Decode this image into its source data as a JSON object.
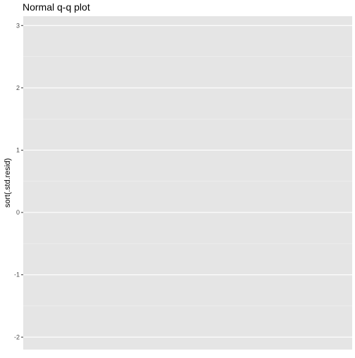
{
  "chart_data": {
    "type": "scatter",
    "title": "Normal q-q plot",
    "xlabel": "",
    "ylabel": "sort(.std.resid)",
    "ylim": [
      -2.2,
      3.15
    ],
    "y_ticks": [
      3,
      2,
      1,
      0,
      -1,
      -2
    ],
    "y_tick_labels": [
      "3",
      "2",
      "1",
      "0",
      "-1",
      "-2"
    ],
    "series": [],
    "grid": true,
    "legend": "none",
    "colors": {
      "panel_background": "#e5e5e5",
      "grid_major": "#ffffff",
      "grid_minor": "#f2f2f2",
      "axis_text": "#4d4d4d",
      "tick": "#333333",
      "text": "#000000"
    }
  }
}
